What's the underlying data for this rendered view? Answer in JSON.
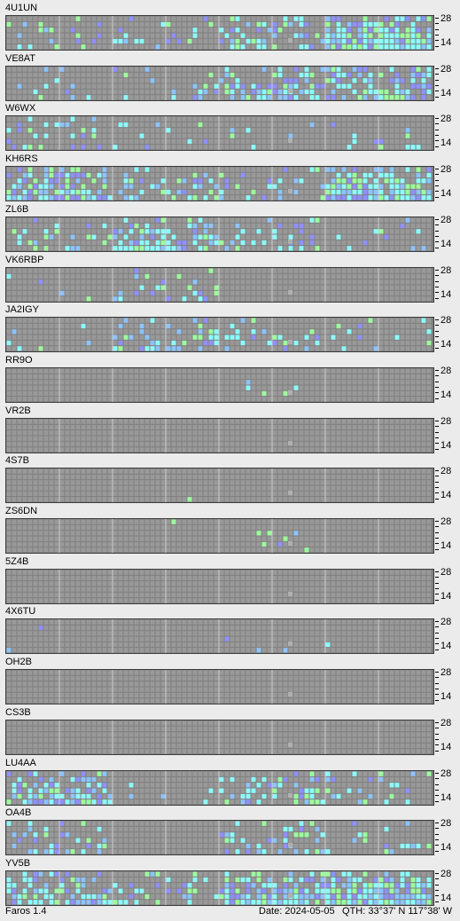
{
  "app": {
    "name": "Faros 1.4"
  },
  "status_bar": {
    "date": "Date: 2024-05-05",
    "qth": "QTH: 33°37' N  117°38' W"
  },
  "band_labels": {
    "top": "28",
    "bottom": "14"
  },
  "colors": {
    "background": "#ebebeb",
    "grid_bg": "#7f7f7f",
    "cell_empty": "#999999",
    "cell_divider": "#ffffff",
    "signal_strong": "#8cfcfc",
    "signal_medium": "#8cc4ff",
    "signal_weak": "#9090ff",
    "signal_green": "#9cff9c",
    "missing_slot": "#b0b0b0"
  },
  "beacons": [
    {
      "callsign": "4U1UN",
      "activity": [
        0.2,
        0.15,
        0.4,
        0.9
      ],
      "peak_region": "evening"
    },
    {
      "callsign": "VE8AT",
      "activity": [
        0.1,
        0.15,
        0.5,
        0.5
      ],
      "peak_region": "late"
    },
    {
      "callsign": "W6WX",
      "activity": [
        0.2,
        0.1,
        0.05,
        0.1
      ],
      "peak_region": "early"
    },
    {
      "callsign": "KH6RS",
      "activity": [
        0.7,
        0.35,
        0.2,
        0.8
      ],
      "peak_region": "late"
    },
    {
      "callsign": "ZL6B",
      "activity": [
        0.2,
        0.6,
        0.25,
        0.1
      ],
      "peak_region": "morning"
    },
    {
      "callsign": "VK6RBP",
      "activity": [
        0.05,
        0.3,
        0.0,
        0.0
      ],
      "peak_region": "midday"
    },
    {
      "callsign": "JA2IGY",
      "activity": [
        0.05,
        0.4,
        0.2,
        0.1
      ],
      "peak_region": "midday"
    },
    {
      "callsign": "RR9O",
      "activity": [
        0.0,
        0.0,
        0.02,
        0.0
      ],
      "peak_region": "none"
    },
    {
      "callsign": "VR2B",
      "activity": [
        0.0,
        0.0,
        0.0,
        0.0
      ],
      "peak_region": "none"
    },
    {
      "callsign": "4S7B",
      "activity": [
        0.0,
        0.01,
        0.0,
        0.0
      ],
      "peak_region": "none"
    },
    {
      "callsign": "ZS6DN",
      "activity": [
        0.0,
        0.02,
        0.1,
        0.01
      ],
      "peak_region": "afternoon"
    },
    {
      "callsign": "5Z4B",
      "activity": [
        0.0,
        0.0,
        0.0,
        0.0
      ],
      "peak_region": "none"
    },
    {
      "callsign": "4X6TU",
      "activity": [
        0.03,
        0.0,
        0.03,
        0.01
      ],
      "peak_region": "none"
    },
    {
      "callsign": "OH2B",
      "activity": [
        0.0,
        0.0,
        0.02,
        0.0
      ],
      "peak_region": "none"
    },
    {
      "callsign": "CS3B",
      "activity": [
        0.0,
        0.0,
        0.0,
        0.0
      ],
      "peak_region": "none"
    },
    {
      "callsign": "LU4AA",
      "activity": [
        0.6,
        0.05,
        0.35,
        0.2
      ],
      "peak_region": "early"
    },
    {
      "callsign": "OA4B",
      "activity": [
        0.35,
        0.0,
        0.3,
        0.2
      ],
      "peak_region": "early"
    },
    {
      "callsign": "YV5B",
      "activity": [
        0.6,
        0.25,
        0.7,
        0.85
      ],
      "peak_region": "late"
    }
  ]
}
